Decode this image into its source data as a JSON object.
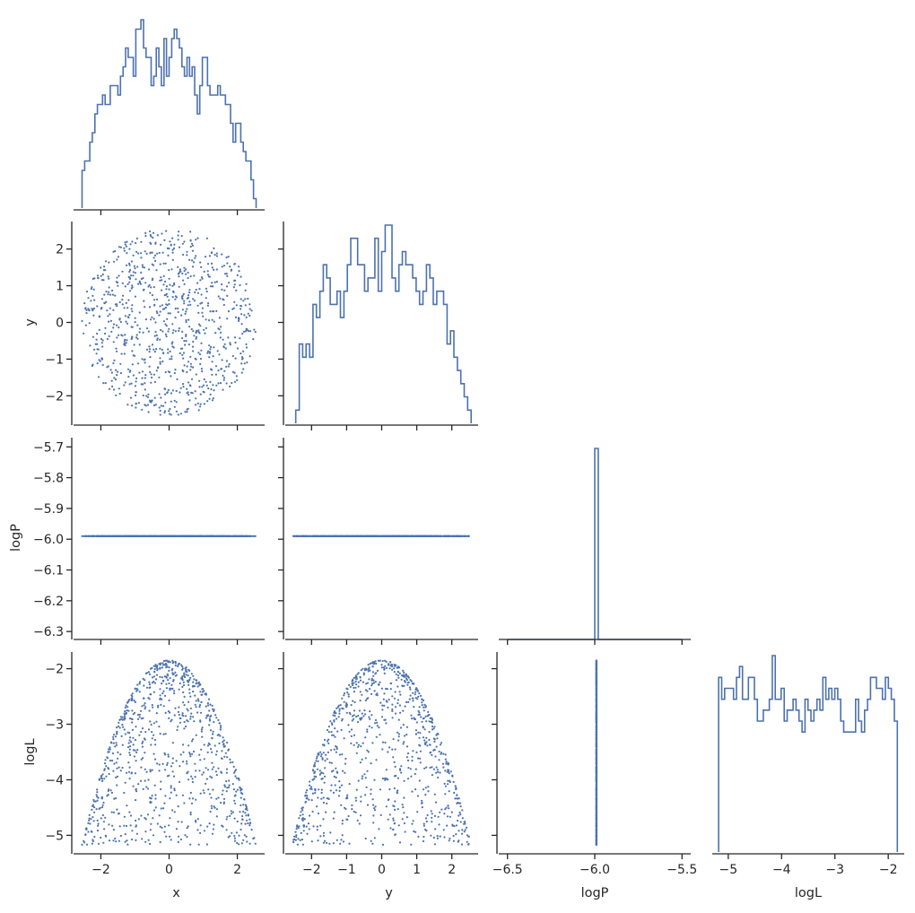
{
  "chart_data": {
    "type": "pairplot",
    "variables": [
      "x",
      "y",
      "logP",
      "logL"
    ],
    "series_color": "#4c72b0",
    "scatter_point_count": 900,
    "axes": {
      "x": {
        "label": "x",
        "ticks": [
          -2,
          0,
          2
        ],
        "tick_labels": [
          "−2",
          "0",
          "2"
        ]
      },
      "y": {
        "label": "y",
        "ticks": [
          -2,
          -1,
          0,
          1,
          2
        ],
        "tick_labels": [
          "−2",
          "−1",
          "0",
          "1",
          "2"
        ]
      },
      "logP": {
        "label": "logP",
        "ticks": [
          -6.3,
          -6.2,
          -6.1,
          -6.0,
          -5.9,
          -5.8,
          -5.7
        ],
        "tick_labels": [
          "−6.3",
          "−6.2",
          "−6.1",
          "−6.0",
          "−5.9",
          "−5.8",
          "−5.7"
        ]
      },
      "logP_x": {
        "label": "logP",
        "ticks": [
          -6.5,
          -6.0,
          -5.5
        ],
        "tick_labels": [
          "−6.5",
          "−6.0",
          "−5.5"
        ]
      },
      "logL": {
        "label": "logL",
        "ticks": [
          -5,
          -4,
          -3,
          -2
        ],
        "tick_labels": [
          "−5",
          "−4",
          "−3",
          "−2"
        ]
      }
    },
    "ranges": {
      "x": [
        -2.8,
        2.8
      ],
      "y": [
        -2.75,
        2.75
      ],
      "logP_y": [
        -6.32,
        -5.67
      ],
      "logP_x": [
        -6.55,
        -5.45
      ],
      "logL": [
        -5.3,
        -1.7
      ]
    },
    "data_domain": {
      "radius": 2.55,
      "logP_constant": -5.99,
      "logL_max": -1.85,
      "logL_min": -5.17
    },
    "hist_x": {
      "range": [
        -2.55,
        2.55
      ],
      "counts": [
        4,
        5,
        5,
        7,
        8,
        10,
        11,
        11,
        12,
        11,
        11,
        13,
        13,
        13,
        12,
        14,
        15,
        17,
        16,
        16,
        14,
        19,
        19,
        20,
        17,
        16,
        16,
        13,
        14,
        17,
        15,
        13,
        18,
        14,
        16,
        18,
        19,
        18,
        17,
        15,
        14,
        16,
        14,
        15,
        12,
        10,
        13,
        16,
        16,
        13,
        12,
        12,
        12,
        13,
        12,
        12,
        11,
        11,
        9,
        7,
        9,
        9,
        7,
        6,
        5,
        5,
        3,
        1
      ]
    },
    "hist_y": {
      "range": [
        -2.45,
        2.55
      ],
      "counts": [
        1,
        6,
        5,
        6,
        5,
        9,
        8,
        10,
        12,
        11,
        9,
        9,
        10,
        8,
        10,
        12,
        14,
        14,
        12,
        12,
        10,
        11,
        11,
        14,
        10,
        13,
        15,
        15,
        11,
        10,
        12,
        13,
        12,
        12,
        11,
        10,
        9,
        10,
        12,
        11,
        9,
        10,
        10,
        9,
        6,
        7,
        5,
        4,
        3,
        2,
        1
      ]
    },
    "hist_logP": {
      "center": -5.99,
      "width": 0.02,
      "baseline_range": [
        -6.5,
        -5.5
      ]
    },
    "hist_logL": {
      "range": [
        -5.18,
        -1.83
      ],
      "counts": [
        16,
        14,
        15,
        15,
        15,
        14,
        16,
        17,
        14,
        14,
        16,
        16,
        14,
        12,
        12,
        13,
        13,
        14,
        18,
        14,
        14,
        15,
        12,
        13,
        13,
        14,
        13,
        12,
        11,
        14,
        13,
        12,
        13,
        14,
        13,
        16,
        14,
        15,
        14,
        15,
        14,
        12,
        11,
        11,
        11,
        11,
        14,
        12,
        11,
        13,
        14,
        16,
        16,
        15,
        15,
        14,
        16,
        15,
        14,
        12
      ]
    }
  }
}
